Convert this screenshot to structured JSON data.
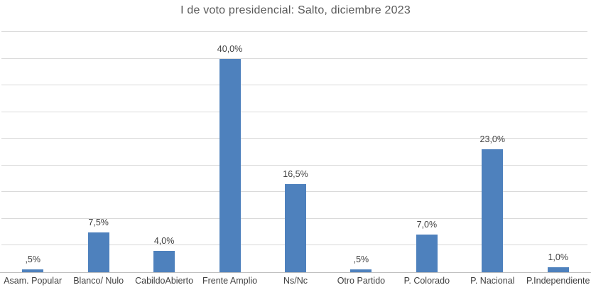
{
  "chart_data": {
    "type": "bar",
    "title": "I de voto presidencial: Salto, diciembre 2023",
    "categories": [
      "Asam. Popular",
      "Blanco/ Nulo",
      "CabildoAbierto",
      "Frente Amplio",
      "Ns/Nc",
      "Otro Partido",
      "P. Colorado",
      "P. Nacional",
      "P.Independiente"
    ],
    "values": [
      0.5,
      7.5,
      4.0,
      40.0,
      16.5,
      0.5,
      7.0,
      23.0,
      1.0
    ],
    "value_labels": [
      ",5%",
      "7,5%",
      "4,0%",
      "40,0%",
      "16,5%",
      ",5%",
      "7,0%",
      "23,0%",
      "1,0%"
    ],
    "xlabel": "",
    "ylabel": "",
    "ylim": [
      0,
      45
    ],
    "grid_step": 5,
    "grid_on": true,
    "legend": "none",
    "bar_color": "#4e81bd",
    "gridline_color": "#d9d9d9",
    "axis_line_color": "#bfbfbf",
    "title_color": "#595959",
    "label_color": "#404040"
  }
}
